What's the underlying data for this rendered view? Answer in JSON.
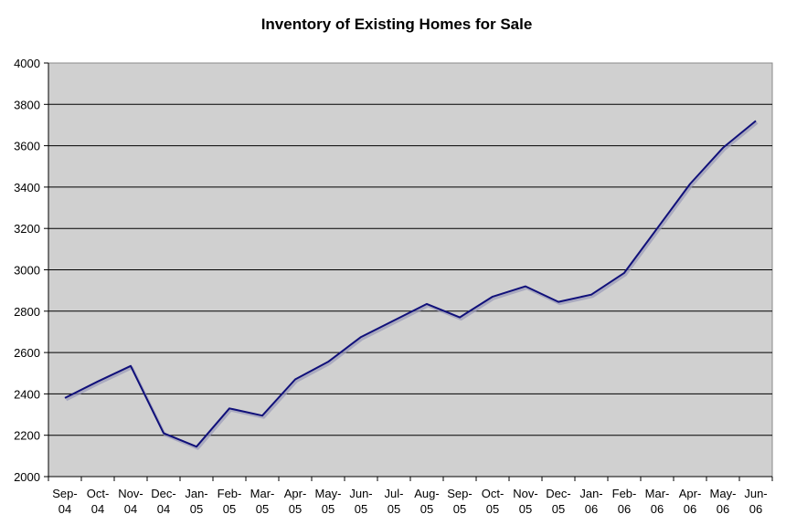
{
  "chart_data": {
    "type": "line",
    "title": "Inventory of Existing Homes for Sale",
    "xlabel": "",
    "ylabel": "",
    "ylim": [
      2000,
      4000
    ],
    "yticks": [
      2000,
      2200,
      2400,
      2600,
      2800,
      3000,
      3200,
      3400,
      3600,
      3800,
      4000
    ],
    "grid": true,
    "legend": "none",
    "categories": [
      [
        "Sep-",
        "04"
      ],
      [
        "Oct-",
        "04"
      ],
      [
        "Nov-",
        "04"
      ],
      [
        "Dec-",
        "04"
      ],
      [
        "Jan-",
        "05"
      ],
      [
        "Feb-",
        "05"
      ],
      [
        "Mar-",
        "05"
      ],
      [
        "Apr-",
        "05"
      ],
      [
        "May-",
        "05"
      ],
      [
        "Jun-",
        "05"
      ],
      [
        "Jul-",
        "05"
      ],
      [
        "Aug-",
        "05"
      ],
      [
        "Sep-",
        "05"
      ],
      [
        "Oct-",
        "05"
      ],
      [
        "Nov-",
        "05"
      ],
      [
        "Dec-",
        "05"
      ],
      [
        "Jan-",
        "06"
      ],
      [
        "Feb-",
        "06"
      ],
      [
        "Mar-",
        "06"
      ],
      [
        "Apr-",
        "06"
      ],
      [
        "May-",
        "06"
      ],
      [
        "Jun-",
        "06"
      ]
    ],
    "series": [
      {
        "values": [
          2380,
          2460,
          2535,
          2210,
          2145,
          2330,
          2295,
          2470,
          2555,
          2675,
          2755,
          2835,
          2770,
          2870,
          2920,
          2845,
          2880,
          2985,
          3200,
          3415,
          3590,
          3720
        ]
      }
    ],
    "colors": {
      "line": "#10107a",
      "plot_bg": "#d0d0d0",
      "grid": "#000000",
      "page_bg": "#ffffff"
    }
  }
}
